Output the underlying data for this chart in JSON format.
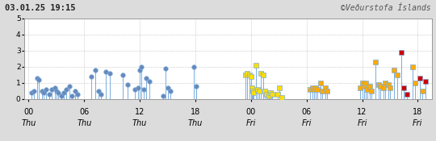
{
  "title_left": "03.01.25 19:15",
  "title_right": "©Veðurstofa Íslands",
  "ylim": [
    0,
    5
  ],
  "yticks": [
    0,
    1,
    2,
    3,
    4,
    5
  ],
  "xlim": [
    -0.5,
    43.5
  ],
  "xtick_positions": [
    0,
    6,
    12,
    18,
    24,
    30,
    36,
    42
  ],
  "xtick_hour_labels": [
    "00",
    "06",
    "12",
    "18",
    "00",
    "06",
    "12",
    "18"
  ],
  "xtick_day_labels": [
    "Thu",
    "Thu",
    "Thu",
    "Thu",
    "Fri",
    "Fri",
    "Fri",
    "Fri"
  ],
  "background_color": "#dcdcdc",
  "plot_bg": "#ffffff",
  "grid_color": "#888888",
  "stem_color": "#7aaddc",
  "color_map": {
    "blue": "#6688bb",
    "yellow": "#ffdd00",
    "orange": "#ffaa00",
    "red": "#cc0000"
  },
  "marker_map": {
    "blue": "o",
    "yellow": "s",
    "orange": "s",
    "red": "s"
  },
  "earthquakes": [
    {
      "t": 0.3,
      "m": 0.4,
      "color": "blue"
    },
    {
      "t": 0.6,
      "m": 0.5,
      "color": "blue"
    },
    {
      "t": 0.9,
      "m": 1.3,
      "color": "blue"
    },
    {
      "t": 1.1,
      "m": 1.2,
      "color": "blue"
    },
    {
      "t": 1.4,
      "m": 0.5,
      "color": "blue"
    },
    {
      "t": 1.6,
      "m": 0.4,
      "color": "blue"
    },
    {
      "t": 1.9,
      "m": 0.6,
      "color": "blue"
    },
    {
      "t": 2.2,
      "m": 0.3,
      "color": "blue"
    },
    {
      "t": 2.5,
      "m": 0.6,
      "color": "blue"
    },
    {
      "t": 2.8,
      "m": 0.7,
      "color": "blue"
    },
    {
      "t": 3.0,
      "m": 0.5,
      "color": "blue"
    },
    {
      "t": 3.2,
      "m": 0.4,
      "color": "blue"
    },
    {
      "t": 3.5,
      "m": 0.2,
      "color": "blue"
    },
    {
      "t": 3.8,
      "m": 0.4,
      "color": "blue"
    },
    {
      "t": 4.1,
      "m": 0.6,
      "color": "blue"
    },
    {
      "t": 4.4,
      "m": 0.8,
      "color": "blue"
    },
    {
      "t": 4.7,
      "m": 0.2,
      "color": "blue"
    },
    {
      "t": 5.0,
      "m": 0.5,
      "color": "blue"
    },
    {
      "t": 5.3,
      "m": 0.3,
      "color": "blue"
    },
    {
      "t": 6.8,
      "m": 1.4,
      "color": "blue"
    },
    {
      "t": 7.2,
      "m": 1.8,
      "color": "blue"
    },
    {
      "t": 7.5,
      "m": 0.5,
      "color": "blue"
    },
    {
      "t": 7.8,
      "m": 0.3,
      "color": "blue"
    },
    {
      "t": 8.3,
      "m": 1.7,
      "color": "blue"
    },
    {
      "t": 8.8,
      "m": 1.6,
      "color": "blue"
    },
    {
      "t": 10.2,
      "m": 1.5,
      "color": "blue"
    },
    {
      "t": 10.7,
      "m": 0.9,
      "color": "blue"
    },
    {
      "t": 11.5,
      "m": 0.6,
      "color": "blue"
    },
    {
      "t": 11.8,
      "m": 0.7,
      "color": "blue"
    },
    {
      "t": 12.0,
      "m": 1.8,
      "color": "blue"
    },
    {
      "t": 12.2,
      "m": 2.0,
      "color": "blue"
    },
    {
      "t": 12.4,
      "m": 0.6,
      "color": "blue"
    },
    {
      "t": 12.7,
      "m": 1.3,
      "color": "blue"
    },
    {
      "t": 13.0,
      "m": 1.1,
      "color": "blue"
    },
    {
      "t": 14.5,
      "m": 0.2,
      "color": "blue"
    },
    {
      "t": 14.8,
      "m": 1.9,
      "color": "blue"
    },
    {
      "t": 15.0,
      "m": 0.7,
      "color": "blue"
    },
    {
      "t": 15.3,
      "m": 0.5,
      "color": "blue"
    },
    {
      "t": 17.8,
      "m": 2.0,
      "color": "blue"
    },
    {
      "t": 18.1,
      "m": 0.8,
      "color": "blue"
    },
    {
      "t": 23.4,
      "m": 1.5,
      "color": "yellow"
    },
    {
      "t": 23.6,
      "m": 1.6,
      "color": "yellow"
    },
    {
      "t": 23.8,
      "m": 1.5,
      "color": "yellow"
    },
    {
      "t": 24.0,
      "m": 1.4,
      "color": "yellow"
    },
    {
      "t": 24.1,
      "m": 0.7,
      "color": "yellow"
    },
    {
      "t": 24.2,
      "m": 0.5,
      "color": "yellow"
    },
    {
      "t": 24.3,
      "m": 0.4,
      "color": "yellow"
    },
    {
      "t": 24.5,
      "m": 2.1,
      "color": "yellow"
    },
    {
      "t": 24.7,
      "m": 0.6,
      "color": "yellow"
    },
    {
      "t": 24.9,
      "m": 0.5,
      "color": "yellow"
    },
    {
      "t": 25.1,
      "m": 1.6,
      "color": "yellow"
    },
    {
      "t": 25.3,
      "m": 1.5,
      "color": "yellow"
    },
    {
      "t": 25.5,
      "m": 0.5,
      "color": "yellow"
    },
    {
      "t": 25.7,
      "m": 0.3,
      "color": "yellow"
    },
    {
      "t": 25.9,
      "m": 0.2,
      "color": "yellow"
    },
    {
      "t": 26.1,
      "m": 0.4,
      "color": "yellow"
    },
    {
      "t": 26.3,
      "m": 0.3,
      "color": "yellow"
    },
    {
      "t": 26.9,
      "m": 0.3,
      "color": "yellow"
    },
    {
      "t": 27.1,
      "m": 0.7,
      "color": "yellow"
    },
    {
      "t": 27.3,
      "m": 0.1,
      "color": "yellow"
    },
    {
      "t": 30.4,
      "m": 0.6,
      "color": "orange"
    },
    {
      "t": 30.6,
      "m": 0.7,
      "color": "orange"
    },
    {
      "t": 30.8,
      "m": 0.6,
      "color": "orange"
    },
    {
      "t": 31.0,
      "m": 0.7,
      "color": "orange"
    },
    {
      "t": 31.2,
      "m": 0.6,
      "color": "orange"
    },
    {
      "t": 31.5,
      "m": 1.0,
      "color": "orange"
    },
    {
      "t": 31.7,
      "m": 0.5,
      "color": "orange"
    },
    {
      "t": 32.0,
      "m": 0.7,
      "color": "orange"
    },
    {
      "t": 32.2,
      "m": 0.5,
      "color": "orange"
    },
    {
      "t": 35.8,
      "m": 0.7,
      "color": "orange"
    },
    {
      "t": 36.0,
      "m": 1.0,
      "color": "orange"
    },
    {
      "t": 36.2,
      "m": 0.8,
      "color": "orange"
    },
    {
      "t": 36.4,
      "m": 1.0,
      "color": "orange"
    },
    {
      "t": 36.6,
      "m": 0.6,
      "color": "orange"
    },
    {
      "t": 36.8,
      "m": 0.8,
      "color": "orange"
    },
    {
      "t": 37.0,
      "m": 0.5,
      "color": "orange"
    },
    {
      "t": 37.4,
      "m": 2.3,
      "color": "orange"
    },
    {
      "t": 37.8,
      "m": 0.9,
      "color": "orange"
    },
    {
      "t": 38.0,
      "m": 0.8,
      "color": "orange"
    },
    {
      "t": 38.3,
      "m": 0.7,
      "color": "orange"
    },
    {
      "t": 38.5,
      "m": 1.0,
      "color": "orange"
    },
    {
      "t": 38.8,
      "m": 0.9,
      "color": "orange"
    },
    {
      "t": 39.0,
      "m": 0.7,
      "color": "orange"
    },
    {
      "t": 39.4,
      "m": 1.8,
      "color": "orange"
    },
    {
      "t": 39.8,
      "m": 1.5,
      "color": "orange"
    },
    {
      "t": 40.2,
      "m": 2.9,
      "color": "red"
    },
    {
      "t": 40.5,
      "m": 0.7,
      "color": "red"
    },
    {
      "t": 40.8,
      "m": 0.3,
      "color": "red"
    },
    {
      "t": 41.4,
      "m": 2.0,
      "color": "orange"
    },
    {
      "t": 41.7,
      "m": 1.0,
      "color": "orange"
    },
    {
      "t": 42.2,
      "m": 1.3,
      "color": "red"
    },
    {
      "t": 42.5,
      "m": 0.5,
      "color": "orange"
    },
    {
      "t": 42.8,
      "m": 1.1,
      "color": "red"
    }
  ]
}
